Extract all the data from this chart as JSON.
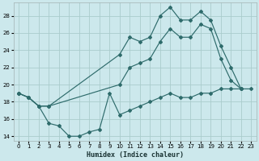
{
  "xlabel": "Humidex (Indice chaleur)",
  "background_color": "#cce8ec",
  "grid_color": "#aacccc",
  "line_color": "#2e6b6b",
  "xlim": [
    -0.5,
    23.5
  ],
  "ylim": [
    13.5,
    29.5
  ],
  "xticks": [
    0,
    1,
    2,
    3,
    4,
    5,
    6,
    7,
    8,
    9,
    10,
    11,
    12,
    13,
    14,
    15,
    16,
    17,
    18,
    19,
    20,
    21,
    22,
    23
  ],
  "yticks": [
    14,
    16,
    18,
    20,
    22,
    24,
    26,
    28
  ],
  "line_top": {
    "x": [
      0,
      1,
      2,
      3,
      10,
      11,
      12,
      13,
      14,
      15,
      16,
      17,
      18,
      19,
      20,
      21,
      22
    ],
    "y": [
      19,
      18.5,
      17.5,
      17.5,
      23.5,
      25.5,
      25.0,
      25.5,
      28.0,
      29.0,
      27.5,
      27.5,
      28.5,
      27.5,
      24.5,
      22.0,
      19.5
    ]
  },
  "line_mid": {
    "x": [
      0,
      1,
      2,
      3,
      10,
      11,
      12,
      13,
      14,
      15,
      16,
      17,
      18,
      19,
      20,
      21,
      22
    ],
    "y": [
      19,
      18.5,
      17.5,
      17.5,
      20.0,
      22.0,
      22.5,
      23.0,
      25.0,
      26.5,
      25.5,
      25.5,
      27.0,
      26.5,
      23.0,
      20.5,
      19.5
    ]
  },
  "line_bot": {
    "x": [
      0,
      1,
      2,
      3,
      4,
      5,
      6,
      7,
      8,
      9,
      10,
      11,
      12,
      13,
      14,
      15,
      16,
      17,
      18,
      19,
      20,
      21,
      22,
      23
    ],
    "y": [
      19.0,
      18.5,
      17.5,
      15.5,
      15.2,
      14.0,
      14.0,
      14.5,
      14.8,
      19.0,
      16.5,
      17.0,
      17.5,
      18.0,
      18.5,
      19.0,
      18.5,
      18.5,
      19.0,
      19.0,
      19.5,
      19.5,
      19.5,
      19.5
    ]
  }
}
